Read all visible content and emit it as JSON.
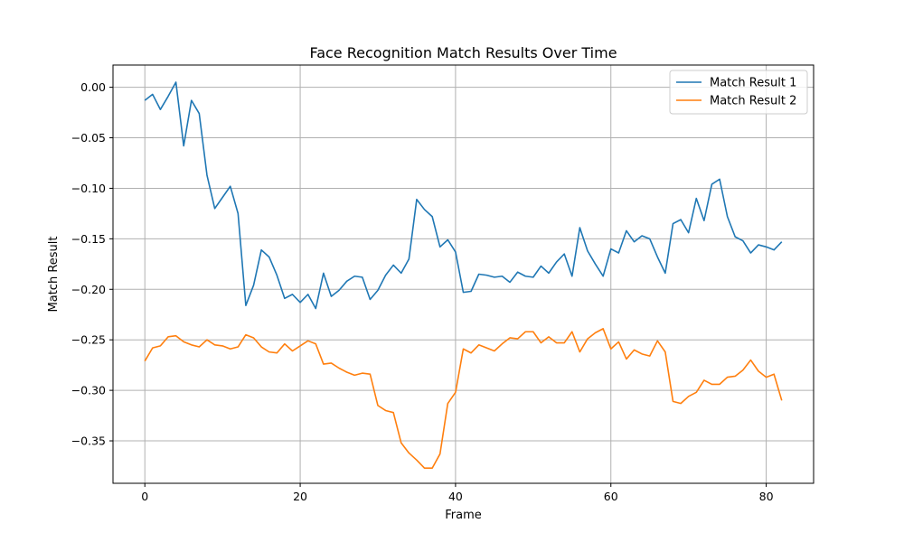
{
  "chart_data": {
    "type": "line",
    "title": "Face Recognition Match Results Over Time",
    "xlabel": "Frame",
    "ylabel": "Match Result",
    "xlim": [
      -4.1,
      86.1
    ],
    "ylim": [
      -0.392,
      0.022
    ],
    "xticks": [
      0,
      20,
      40,
      60,
      80
    ],
    "yticks": [
      0.0,
      -0.05,
      -0.1,
      -0.15,
      -0.2,
      -0.25,
      -0.3,
      -0.35
    ],
    "ytick_labels": [
      "0.00",
      "−0.05",
      "−0.10",
      "−0.15",
      "−0.20",
      "−0.25",
      "−0.30",
      "−0.35"
    ],
    "grid": true,
    "legend_position": "top-right",
    "series": [
      {
        "name": "Match Result 1",
        "color": "#1f77b4",
        "values": [
          -0.013,
          -0.007,
          -0.022,
          -0.009,
          0.005,
          -0.058,
          -0.013,
          -0.026,
          -0.087,
          -0.12,
          -0.109,
          -0.098,
          -0.125,
          -0.216,
          -0.196,
          -0.161,
          -0.168,
          -0.186,
          -0.209,
          -0.205,
          -0.213,
          -0.205,
          -0.219,
          -0.184,
          -0.207,
          -0.201,
          -0.192,
          -0.187,
          -0.188,
          -0.21,
          -0.201,
          -0.186,
          -0.176,
          -0.184,
          -0.17,
          -0.111,
          -0.121,
          -0.128,
          -0.158,
          -0.151,
          -0.163,
          -0.203,
          -0.202,
          -0.185,
          -0.186,
          -0.188,
          -0.187,
          -0.193,
          -0.183,
          -0.187,
          -0.188,
          -0.177,
          -0.184,
          -0.173,
          -0.165,
          -0.187,
          -0.139,
          -0.162,
          -0.175,
          -0.187,
          -0.16,
          -0.164,
          -0.142,
          -0.153,
          -0.147,
          -0.15,
          -0.168,
          -0.184,
          -0.135,
          -0.131,
          -0.144,
          -0.11,
          -0.132,
          -0.096,
          -0.091,
          -0.128,
          -0.148,
          -0.152,
          -0.164,
          -0.156,
          -0.158,
          -0.161,
          -0.153
        ]
      },
      {
        "name": "Match Result 2",
        "color": "#ff7f0e",
        "values": [
          -0.271,
          -0.258,
          -0.256,
          -0.247,
          -0.246,
          -0.252,
          -0.255,
          -0.257,
          -0.25,
          -0.255,
          -0.256,
          -0.259,
          -0.257,
          -0.245,
          -0.248,
          -0.257,
          -0.262,
          -0.263,
          -0.254,
          -0.261,
          -0.256,
          -0.251,
          -0.254,
          -0.274,
          -0.273,
          -0.278,
          -0.282,
          -0.285,
          -0.283,
          -0.284,
          -0.315,
          -0.32,
          -0.322,
          -0.352,
          -0.362,
          -0.369,
          -0.377,
          -0.377,
          -0.363,
          -0.313,
          -0.302,
          -0.259,
          -0.263,
          -0.255,
          -0.258,
          -0.261,
          -0.254,
          -0.248,
          -0.249,
          -0.242,
          -0.242,
          -0.253,
          -0.247,
          -0.253,
          -0.253,
          -0.242,
          -0.262,
          -0.249,
          -0.243,
          -0.239,
          -0.259,
          -0.252,
          -0.269,
          -0.26,
          -0.264,
          -0.266,
          -0.251,
          -0.262,
          -0.311,
          -0.313,
          -0.306,
          -0.302,
          -0.29,
          -0.294,
          -0.294,
          -0.287,
          -0.286,
          -0.28,
          -0.27,
          -0.281,
          -0.287,
          -0.284,
          -0.31
        ]
      }
    ]
  }
}
